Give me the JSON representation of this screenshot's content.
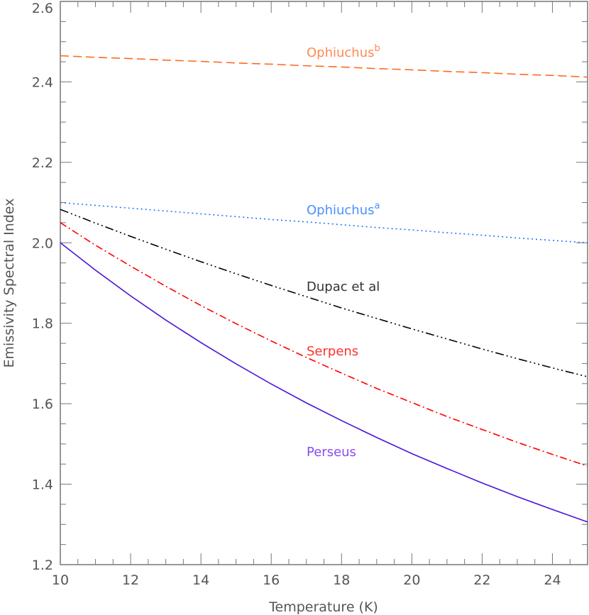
{
  "chart_data": {
    "type": "line",
    "title": "",
    "xlabel": "Temperature (K)",
    "ylabel": "Emissivity Spectral Index",
    "xlim": [
      10,
      25
    ],
    "ylim": [
      1.2,
      2.6
    ],
    "xticks": [
      "10",
      "12",
      "14",
      "16",
      "18",
      "20",
      "22",
      "24"
    ],
    "yticks": [
      "1.2",
      "1.4",
      "1.6",
      "1.8",
      "2.0",
      "2.2",
      "2.4",
      "2.6"
    ],
    "grid": false,
    "x": [
      10,
      11,
      12,
      13,
      14,
      15,
      16,
      17,
      18,
      19,
      20,
      21,
      22,
      23,
      24,
      25
    ],
    "series": [
      {
        "name": "Ophiuchus",
        "superscript": "b",
        "color": "#ff6a20",
        "label_color": "#ff8a50",
        "style": "dashed",
        "values": [
          2.465,
          2.461,
          2.458,
          2.454,
          2.451,
          2.447,
          2.444,
          2.44,
          2.437,
          2.433,
          2.43,
          2.426,
          2.423,
          2.419,
          2.416,
          2.412
        ]
      },
      {
        "name": "Ophiuchus",
        "superscript": "a",
        "color": "#1e78ff",
        "label_color": "#4a90ff",
        "style": "dotted",
        "values": [
          2.1,
          2.093,
          2.086,
          2.079,
          2.072,
          2.065,
          2.058,
          2.052,
          2.045,
          2.038,
          2.032,
          2.025,
          2.019,
          2.012,
          2.006,
          2.0
        ]
      },
      {
        "name": "Dupac et al",
        "superscript": "",
        "color": "#000000",
        "label_color": "#333333",
        "style": "dash-dot-dot-dot",
        "values": [
          2.083,
          2.049,
          2.016,
          1.984,
          1.953,
          1.923,
          1.894,
          1.866,
          1.838,
          1.812,
          1.786,
          1.761,
          1.736,
          1.712,
          1.689,
          1.667
        ]
      },
      {
        "name": "Serpens",
        "superscript": "",
        "color": "#ff0000",
        "label_color": "#ff3030",
        "style": "dash-dot",
        "values": [
          2.05,
          1.994,
          1.942,
          1.892,
          1.844,
          1.799,
          1.756,
          1.715,
          1.676,
          1.638,
          1.603,
          1.568,
          1.536,
          1.504,
          1.474,
          1.445
        ]
      },
      {
        "name": "Perseus",
        "superscript": "",
        "color": "#4b14d8",
        "label_color": "#8a4cf0",
        "style": "solid",
        "values": [
          2.0,
          1.932,
          1.868,
          1.808,
          1.752,
          1.699,
          1.649,
          1.602,
          1.558,
          1.516,
          1.476,
          1.439,
          1.403,
          1.369,
          1.337,
          1.306
        ]
      }
    ]
  }
}
